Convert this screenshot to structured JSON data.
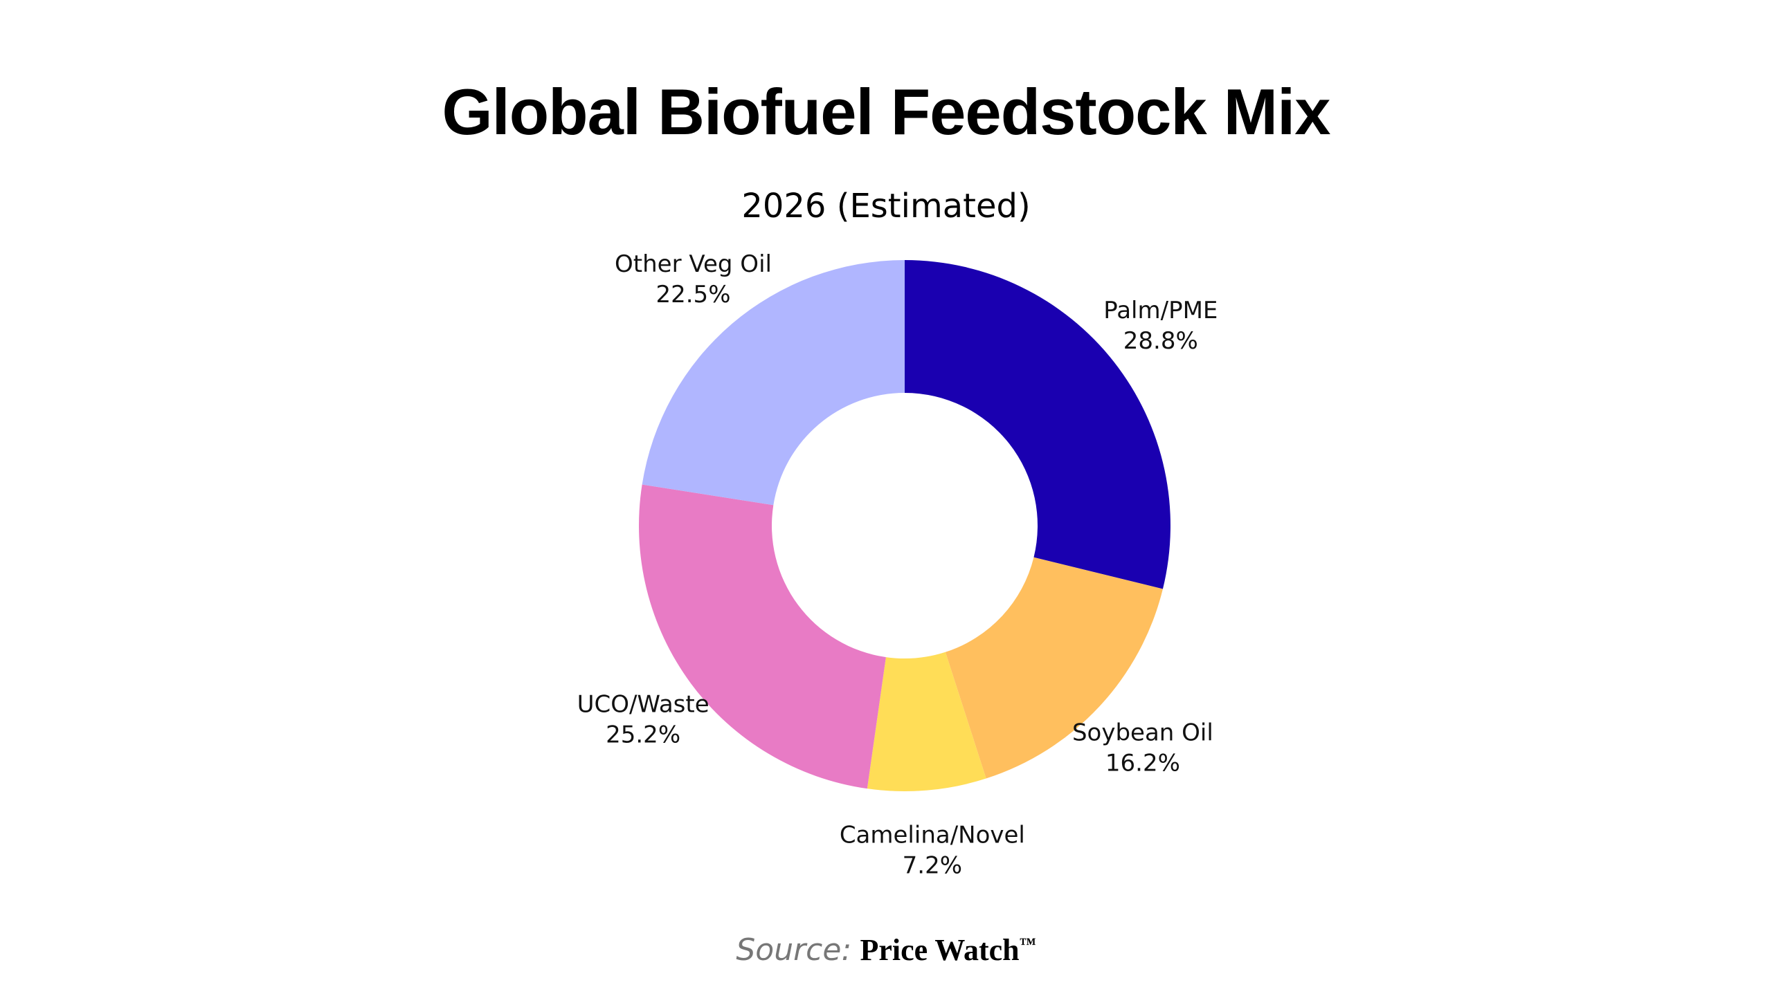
{
  "chart_data": {
    "type": "pie",
    "title": "Global Biofuel Feedstock Mix",
    "subtitle": "2026 (Estimated)",
    "slices": [
      {
        "label": "Palm/PME",
        "value": 28.8,
        "value_label": "28.8%",
        "color": "#1a00b0"
      },
      {
        "label": "Soybean Oil",
        "value": 16.2,
        "value_label": "16.2%",
        "color": "#ffbf5e"
      },
      {
        "label": "Camelina/Novel",
        "value": 7.2,
        "value_label": "7.2%",
        "color": "#ffdd57"
      },
      {
        "label": "UCO/Waste",
        "value": 25.2,
        "value_label": "25.2%",
        "color": "#e87bc5"
      },
      {
        "label": "Other Veg Oil",
        "value": 22.5,
        "value_label": "22.5%",
        "color": "#b0b6ff"
      }
    ],
    "donut": true,
    "start": "12 o'clock, clockwise",
    "legend": "none"
  },
  "source": {
    "prefix": "Source:",
    "brand": "Price Watch",
    "tm": "™"
  }
}
